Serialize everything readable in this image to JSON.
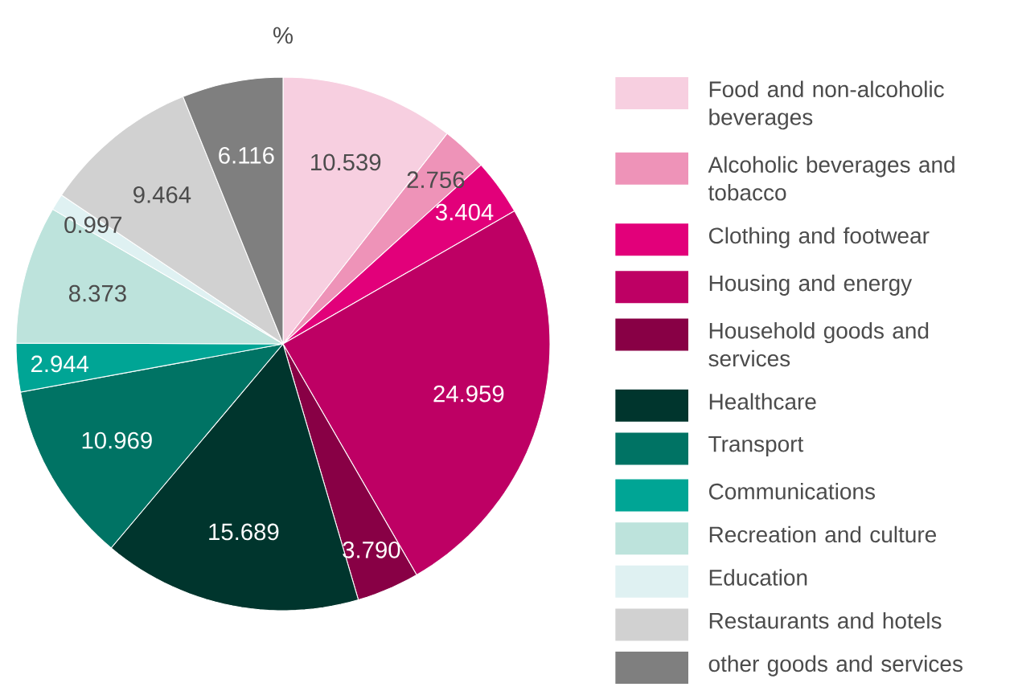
{
  "chart_data": {
    "type": "pie",
    "title": "%",
    "categories": [
      "Food and non-alcoholic beverages",
      "Alcoholic beverages and tobacco",
      "Clothing and footwear",
      "Housing and energy",
      "Household goods and services",
      "Healthcare",
      "Transport",
      "Communications",
      "Recreation and culture",
      "Education",
      "Restaurants and hotels",
      "other goods and services"
    ],
    "values": [
      10.539,
      2.756,
      3.404,
      24.959,
      3.79,
      15.689,
      10.969,
      2.944,
      8.373,
      0.997,
      9.464,
      6.116
    ],
    "value_labels": [
      "10.539",
      "2.756",
      "3.404",
      "24.959",
      "3.790",
      "15.689",
      "10.969",
      "2.944",
      "8.373",
      "0.997",
      "9.464",
      "6.116"
    ],
    "colors": [
      "#f7cfe0",
      "#ee93b8",
      "#e2007a",
      "#be0064",
      "#880045",
      "#00352d",
      "#007364",
      "#00a595",
      "#bde3dc",
      "#dff1f2",
      "#d1d1d1",
      "#7f7f7f"
    ],
    "legend": "right"
  }
}
